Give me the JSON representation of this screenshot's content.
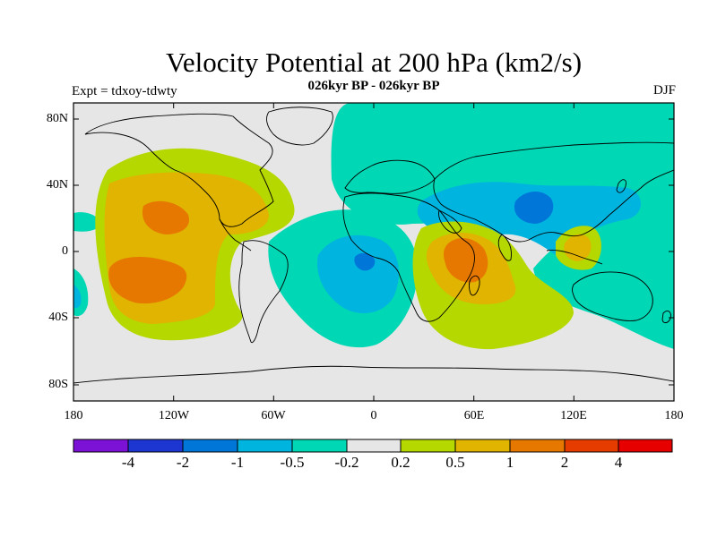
{
  "chart_data": {
    "type": "contour-map",
    "title": "Velocity Potential at 200 hPa (km2/s)",
    "subtitle": "026kyr BP - 026kyr BP",
    "left_label": "Expt = tdxoy-tdwty",
    "right_label": "DJF",
    "lat_ticks": [
      "80N",
      "40N",
      "0",
      "40S",
      "80S"
    ],
    "lon_ticks": [
      "180",
      "120W",
      "60W",
      "0",
      "60E",
      "120E",
      "180"
    ],
    "colorbar_labels": [
      "-4",
      "-2",
      "-1",
      "-0.5",
      "-0.2",
      "0.2",
      "0.5",
      "1",
      "2",
      "4"
    ],
    "colors": [
      "#7b12d6",
      "#1e36d1",
      "#0077d8",
      "#00b4e0",
      "#00d7b4",
      "#e6e6e6",
      "#b4d800",
      "#e0b400",
      "#e67800",
      "#e63c00",
      "#e60000"
    ]
  }
}
